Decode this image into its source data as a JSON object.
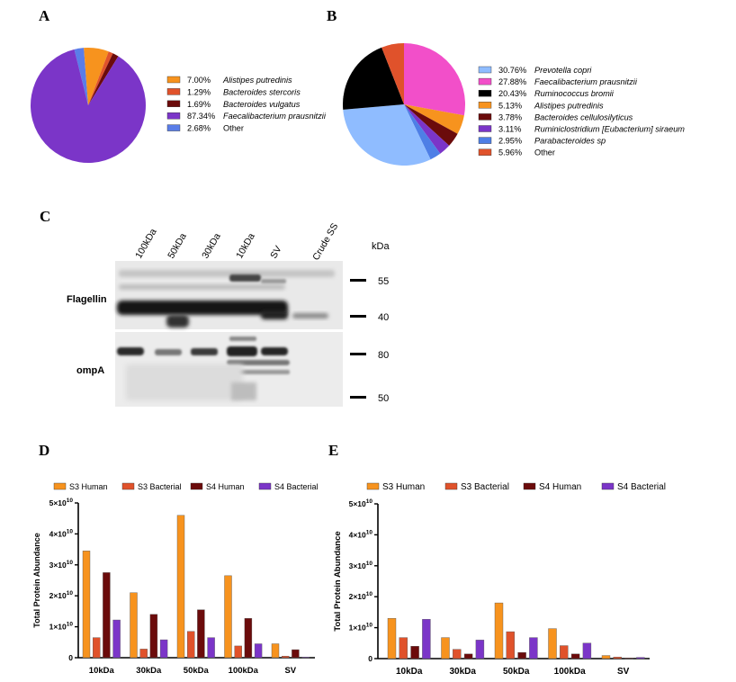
{
  "panels": {
    "A": {
      "letter": "A",
      "chart_type": "pie",
      "slices": [
        {
          "percent_label": "7.00%",
          "name": "Alistipes putredinis",
          "value": 7.0,
          "color": "#f7931e",
          "italic": true
        },
        {
          "percent_label": "1.29%",
          "name": "Bacteroides stercoris",
          "value": 1.29,
          "color": "#e0522b",
          "italic": true
        },
        {
          "percent_label": "1.69%",
          "name": "Bacteroides vulgatus",
          "value": 1.69,
          "color": "#6b0b0b",
          "italic": true
        },
        {
          "percent_label": "87.34%",
          "name": "Faecalibacterium prausnitzii",
          "value": 87.34,
          "color": "#7b35c8",
          "italic": true
        },
        {
          "percent_label": "2.68%",
          "name": "Other",
          "value": 2.68,
          "color": "#5a7de8",
          "italic": false
        }
      ]
    },
    "B": {
      "letter": "B",
      "chart_type": "pie",
      "slices": [
        {
          "percent_label": "30.76%",
          "name": "Prevotella copri",
          "value": 30.76,
          "color": "#8fbcff",
          "italic": true
        },
        {
          "percent_label": "27.88%",
          "name": "Faecalibacterium prausnitzii",
          "value": 27.88,
          "color": "#f24fc9",
          "italic": true
        },
        {
          "percent_label": "20.43%",
          "name": "Ruminococcus bromii",
          "value": 20.43,
          "color": "#000000",
          "italic": true
        },
        {
          "percent_label": "5.13%",
          "name": "Alistipes putredinis",
          "value": 5.13,
          "color": "#f7931e",
          "italic": true
        },
        {
          "percent_label": "3.78%",
          "name": "Bacteroides cellulosilyticus",
          "value": 3.78,
          "color": "#6b0b0b",
          "italic": true
        },
        {
          "percent_label": "3.11%",
          "name": "Ruminiclostridium [Eubacterium] siraeum",
          "value": 3.11,
          "color": "#7b35c8",
          "italic": true
        },
        {
          "percent_label": "2.95%",
          "name": "Parabacteroides sp",
          "value": 2.95,
          "color": "#4e7fe6",
          "italic": true
        },
        {
          "percent_label": "5.96%",
          "name": "Other",
          "value": 5.96,
          "color": "#e0522b",
          "italic": false
        }
      ],
      "pie_order": [
        1,
        3,
        4,
        5,
        6,
        0,
        2,
        7
      ]
    },
    "C": {
      "letter": "C",
      "lane_labels": [
        "100kDa",
        "50kDa",
        "30kDa",
        "10kDa",
        "SV",
        "Crude SS"
      ],
      "kda_label": "kDa",
      "blots": [
        {
          "name": "Flagellin",
          "markers": [
            "55",
            "40"
          ]
        },
        {
          "name": "ompA",
          "markers": [
            "80",
            "50"
          ]
        }
      ]
    }
  },
  "chart_data": [
    {
      "panel": "D",
      "type": "bar",
      "ylabel": "Total Protein Abundance",
      "ylim": [
        0,
        50000000000.0
      ],
      "yticks": [
        {
          "mant": "0",
          "exp": ""
        },
        {
          "mant": "1×10",
          "exp": "10"
        },
        {
          "mant": "2×10",
          "exp": "10"
        },
        {
          "mant": "3×10",
          "exp": "10"
        },
        {
          "mant": "4×10",
          "exp": "10"
        },
        {
          "mant": "5×10",
          "exp": "10"
        }
      ],
      "categories": [
        "10kDa",
        "30kDa",
        "50kDa",
        "100kDa",
        "SV"
      ],
      "series": [
        {
          "name": "S3 Human",
          "color": "#f7931e",
          "values": [
            34500000000.0,
            21000000000.0,
            46000000000.0,
            26500000000.0,
            4500000000.0
          ]
        },
        {
          "name": "S3 Bacterial",
          "color": "#e0522b",
          "values": [
            6500000000.0,
            2800000000.0,
            8500000000.0,
            3800000000.0,
            500000000.0
          ]
        },
        {
          "name": "S4 Human",
          "color": "#6b0b0b",
          "values": [
            27500000000.0,
            14000000000.0,
            15500000000.0,
            12700000000.0,
            2600000000.0
          ]
        },
        {
          "name": "S4 Bacterial",
          "color": "#7b35c8",
          "values": [
            12200000000.0,
            5800000000.0,
            6500000000.0,
            4500000000.0,
            200000000.0
          ]
        }
      ]
    },
    {
      "panel": "E",
      "type": "bar",
      "ylabel": "Total Protein Abundance",
      "ylim": [
        0,
        50000000000.0
      ],
      "yticks": [
        {
          "mant": "0",
          "exp": ""
        },
        {
          "mant": "1×10",
          "exp": "10"
        },
        {
          "mant": "2×10",
          "exp": "10"
        },
        {
          "mant": "3×10",
          "exp": "10"
        },
        {
          "mant": "4×10",
          "exp": "10"
        },
        {
          "mant": "5×10",
          "exp": "10"
        }
      ],
      "categories": [
        "10kDa",
        "30kDa",
        "50kDa",
        "100kDa",
        "SV"
      ],
      "series": [
        {
          "name": "S3 Human",
          "color": "#f7931e",
          "values": [
            13000000000.0,
            6800000000.0,
            18000000000.0,
            9700000000.0,
            1000000000.0
          ]
        },
        {
          "name": "S3 Bacterial",
          "color": "#e0522b",
          "values": [
            6800000000.0,
            3000000000.0,
            8700000000.0,
            4200000000.0,
            500000000.0
          ]
        },
        {
          "name": "S4 Human",
          "color": "#6b0b0b",
          "values": [
            4000000000.0,
            1500000000.0,
            2000000000.0,
            1500000000.0,
            200000000.0
          ]
        },
        {
          "name": "S4 Bacterial",
          "color": "#7b35c8",
          "values": [
            12700000000.0,
            6000000000.0,
            6800000000.0,
            5000000000.0,
            400000000.0
          ]
        }
      ]
    }
  ]
}
